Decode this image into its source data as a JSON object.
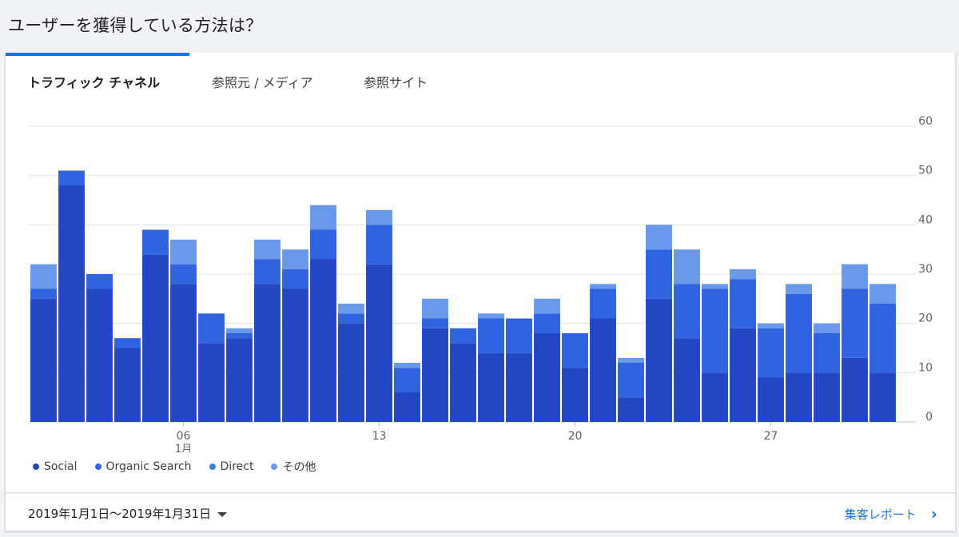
{
  "page": {
    "title": "ユーザーを獲得している方法は？"
  },
  "tabs": [
    {
      "label": "トラフィック チャネル",
      "active": true
    },
    {
      "label": "参照元 / メディア",
      "active": false
    },
    {
      "label": "参照サイト",
      "active": false
    }
  ],
  "footer": {
    "date_range": "2019年1月1日〜2019年1月31日",
    "report_link": "集客レポート",
    "link_color": "#1a73e8"
  },
  "chart_data": {
    "type": "bar",
    "stacked": true,
    "title": "",
    "xlabel": "",
    "ylabel": "",
    "ylim": [
      0,
      60
    ],
    "y_ticks": [
      0,
      10,
      20,
      30,
      40,
      50,
      60
    ],
    "y_axis_position": "right",
    "grid": true,
    "legend_position": "bottom-left",
    "x": [
      "01",
      "02",
      "03",
      "04",
      "05",
      "06",
      "07",
      "08",
      "09",
      "10",
      "11",
      "12",
      "13",
      "14",
      "15",
      "16",
      "17",
      "18",
      "19",
      "20",
      "21",
      "22",
      "23",
      "24",
      "25",
      "26",
      "27",
      "28",
      "29",
      "30",
      "31"
    ],
    "x_tick_labels": [
      {
        "index": 5,
        "label": "06",
        "sublabel": "1月"
      },
      {
        "index": 12,
        "label": "13"
      },
      {
        "index": 19,
        "label": "20"
      },
      {
        "index": 26,
        "label": "27"
      }
    ],
    "series": [
      {
        "name": "Social",
        "color": "#2347c2",
        "values": [
          25,
          48,
          27,
          15,
          34,
          28,
          16,
          17,
          28,
          27,
          33,
          20,
          32,
          6,
          19,
          16,
          14,
          14,
          18,
          11,
          21,
          5,
          25,
          17,
          10,
          19,
          9,
          10,
          10,
          13,
          10
        ]
      },
      {
        "name": "Organic Search",
        "color": "#2f63e0",
        "values": [
          2,
          3,
          3,
          2,
          5,
          4,
          6,
          1,
          5,
          4,
          6,
          2,
          8,
          5,
          2,
          3,
          7,
          7,
          4,
          7,
          6,
          7,
          10,
          11,
          17,
          10,
          10,
          16,
          8,
          14,
          14
        ]
      },
      {
        "name": "Direct",
        "color": "#3f7ee8",
        "values": [
          0,
          0,
          0,
          0,
          0,
          0,
          0,
          0,
          0,
          0,
          0,
          0,
          0,
          0,
          0,
          0,
          0,
          0,
          0,
          0,
          0,
          0,
          0,
          0,
          0,
          0,
          0,
          0,
          0,
          0,
          0
        ]
      },
      {
        "name": "その他",
        "color": "#6a99ec",
        "values": [
          5,
          0,
          0,
          0,
          0,
          5,
          0,
          1,
          4,
          4,
          5,
          2,
          3,
          1,
          4,
          0,
          1,
          0,
          3,
          0,
          1,
          1,
          5,
          7,
          1,
          2,
          1,
          2,
          2,
          5,
          4
        ]
      }
    ]
  }
}
